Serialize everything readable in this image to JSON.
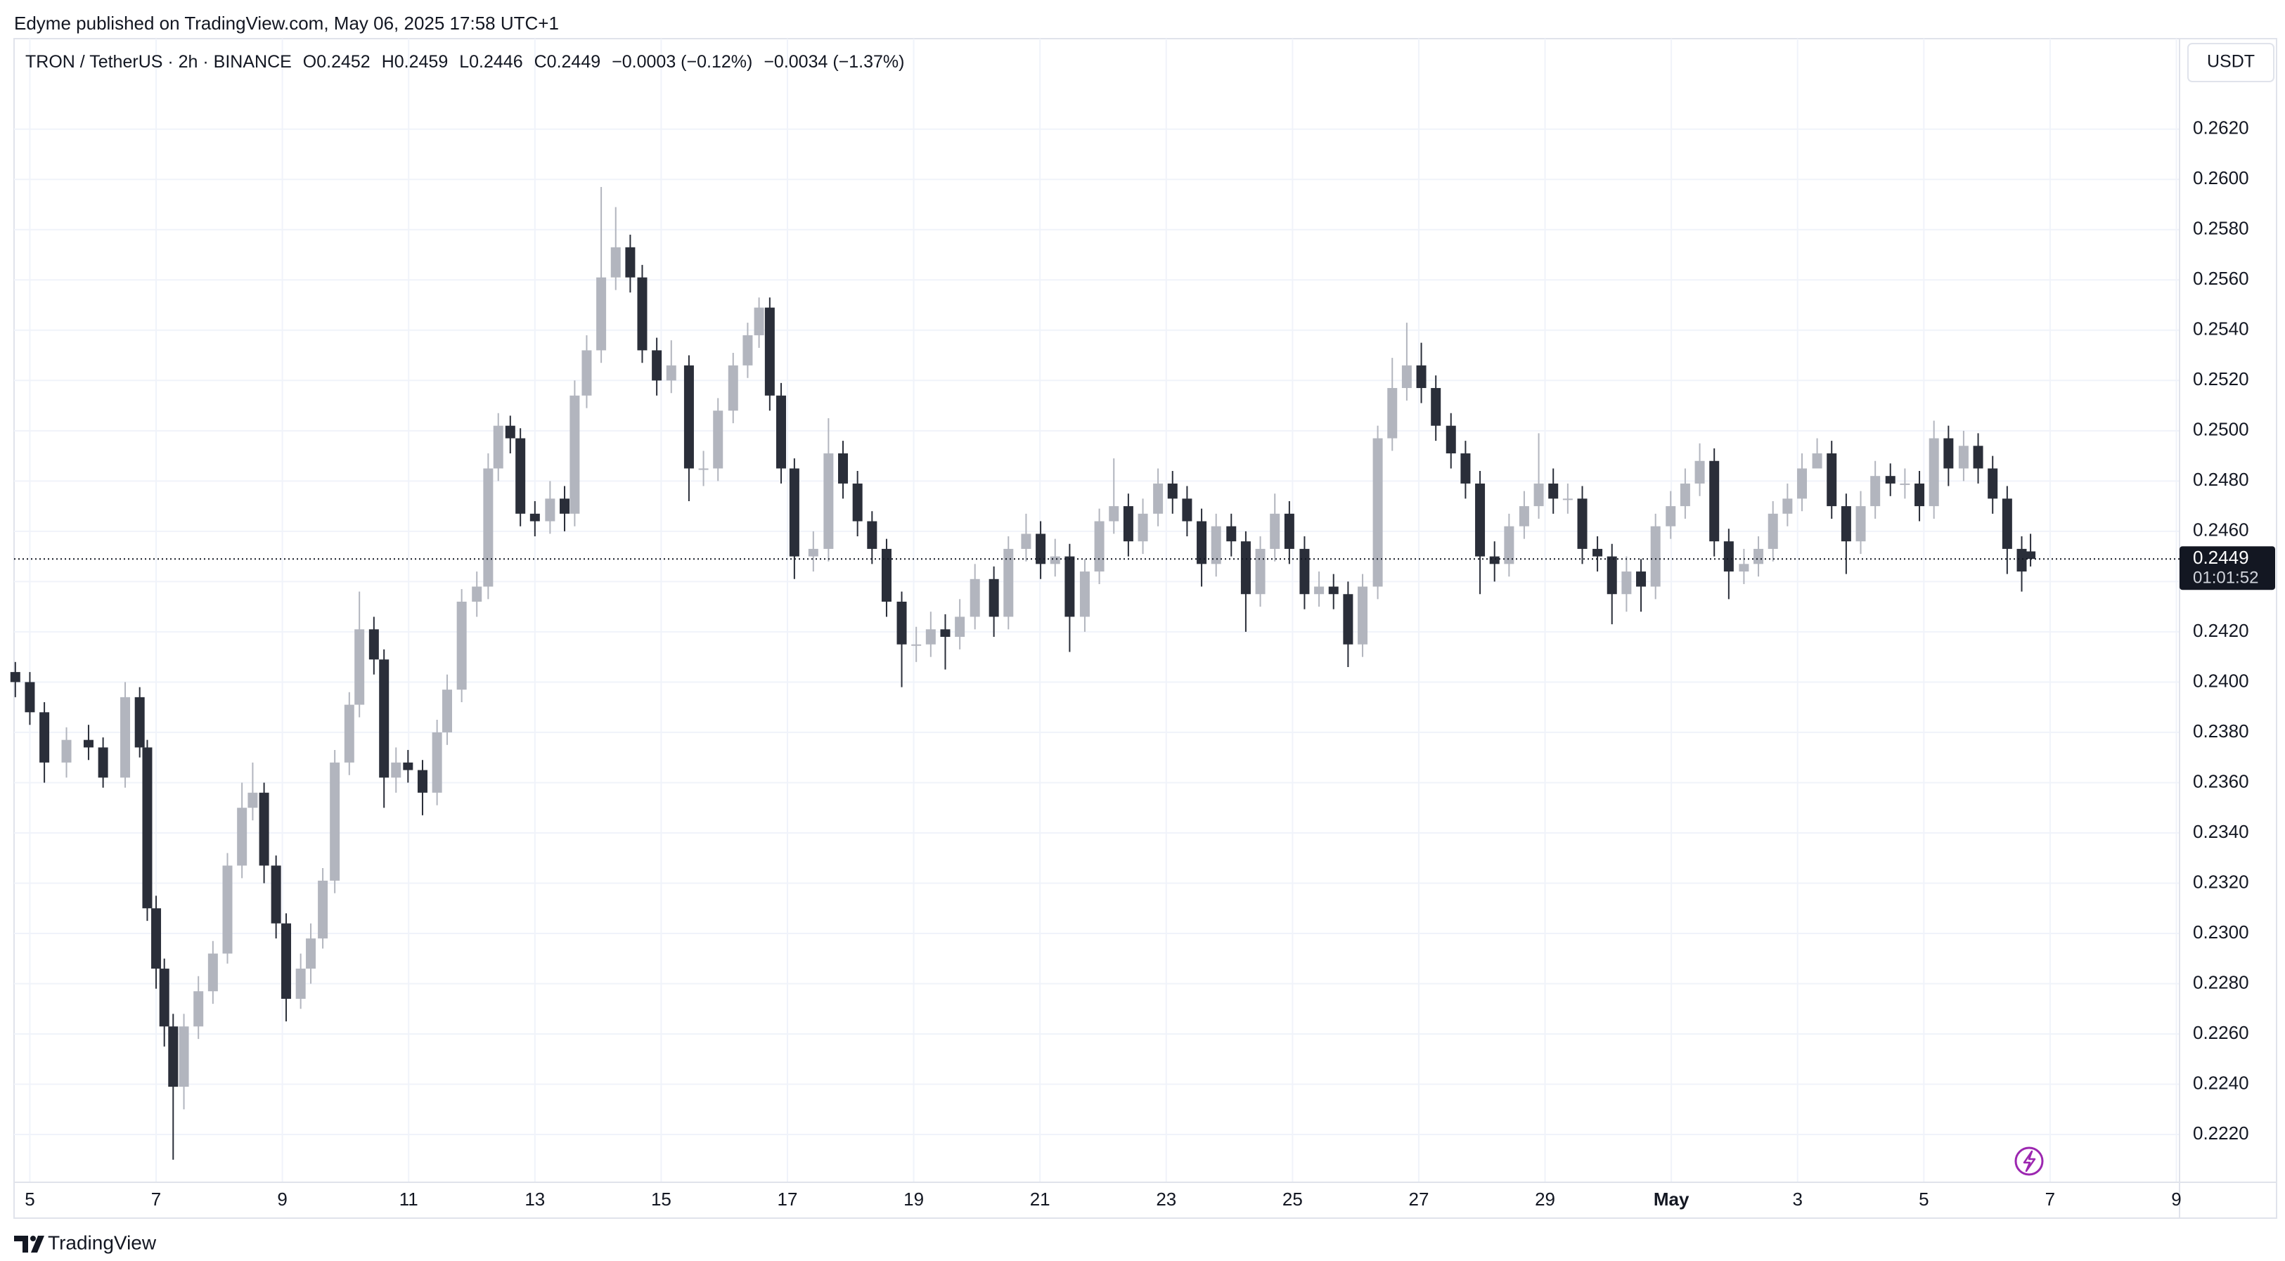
{
  "attribution": "Edyme published on TradingView.com, May 06, 2025 17:58 UTC+1",
  "footer": "TradingView",
  "chart_data": {
    "type": "candlestick",
    "symbol": "TRON / TetherUS · 2h · BINANCE",
    "ohlc_labels": [
      "O0.2452",
      "H0.2459",
      "L0.2446",
      "C0.2449"
    ],
    "change": "−0.0003 (−0.12%)",
    "change_2": "−0.0034 (−1.37%)",
    "currency": "USDT",
    "last_price": 0.2449,
    "countdown": "01:01:52",
    "up_color": "#b2b5be",
    "down_color": "#2a2e39",
    "grid": true,
    "xlim": [
      -0.25,
      34.05
    ],
    "xticks": [
      {
        "value": 0,
        "label": "5"
      },
      {
        "value": 2,
        "label": "7"
      },
      {
        "value": 4,
        "label": "9"
      },
      {
        "value": 6,
        "label": "11"
      },
      {
        "value": 8,
        "label": "13"
      },
      {
        "value": 10,
        "label": "15"
      },
      {
        "value": 12,
        "label": "17"
      },
      {
        "value": 14,
        "label": "19"
      },
      {
        "value": 16,
        "label": "21"
      },
      {
        "value": 18,
        "label": "23"
      },
      {
        "value": 20,
        "label": "25"
      },
      {
        "value": 22,
        "label": "27"
      },
      {
        "value": 24,
        "label": "29"
      },
      {
        "value": 26,
        "label": "May"
      },
      {
        "value": 28,
        "label": "3"
      },
      {
        "value": 30,
        "label": "5"
      },
      {
        "value": 32,
        "label": "7"
      },
      {
        "value": 34,
        "label": "9"
      }
    ],
    "ylim": [
      0.2201,
      0.2656
    ],
    "yticks": [
      {
        "value": 0.222,
        "label": "0.2220"
      },
      {
        "value": 0.224,
        "label": "0.2240"
      },
      {
        "value": 0.226,
        "label": "0.2260"
      },
      {
        "value": 0.228,
        "label": "0.2280"
      },
      {
        "value": 0.23,
        "label": "0.2300"
      },
      {
        "value": 0.232,
        "label": "0.2320"
      },
      {
        "value": 0.234,
        "label": "0.2340"
      },
      {
        "value": 0.236,
        "label": "0.2360"
      },
      {
        "value": 0.238,
        "label": "0.2380"
      },
      {
        "value": 0.24,
        "label": "0.2400"
      },
      {
        "value": 0.242,
        "label": "0.2420"
      },
      {
        "value": 0.244,
        "label": "0.2440"
      },
      {
        "value": 0.246,
        "label": "0.2460"
      },
      {
        "value": 0.248,
        "label": "0.2480"
      },
      {
        "value": 0.25,
        "label": "0.2500"
      },
      {
        "value": 0.252,
        "label": "0.2520"
      },
      {
        "value": 0.254,
        "label": "0.2540"
      },
      {
        "value": 0.256,
        "label": "0.2560"
      },
      {
        "value": 0.258,
        "label": "0.2580"
      },
      {
        "value": 0.26,
        "label": "0.2600"
      },
      {
        "value": 0.262,
        "label": "0.2620"
      }
    ],
    "x": [
      -0.23,
      0,
      0.23,
      0.58,
      0.93,
      1.16,
      1.51,
      1.74,
      1.86,
      2.0,
      2.13,
      2.27,
      2.44,
      2.67,
      2.9,
      3.13,
      3.36,
      3.53,
      3.71,
      3.9,
      4.06,
      4.29,
      4.45,
      4.64,
      4.83,
      5.06,
      5.22,
      5.45,
      5.61,
      5.8,
      5.99,
      6.22,
      6.45,
      6.61,
      6.84,
      7.08,
      7.26,
      7.42,
      7.61,
      7.77,
      8.0,
      8.24,
      8.47,
      8.63,
      8.82,
      9.05,
      9.28,
      9.51,
      9.7,
      9.93,
      10.16,
      10.44,
      10.67,
      10.9,
      11.14,
      11.37,
      11.55,
      11.72,
      11.9,
      12.11,
      12.41,
      12.65,
      12.88,
      13.11,
      13.34,
      13.57,
      13.81,
      14.04,
      14.27,
      14.5,
      14.73,
      14.97,
      15.27,
      15.5,
      15.78,
      16.01,
      16.24,
      16.47,
      16.71,
      16.94,
      17.17,
      17.4,
      17.63,
      17.87,
      18.1,
      18.33,
      18.56,
      18.79,
      19.03,
      19.26,
      19.49,
      19.72,
      19.95,
      20.19,
      20.42,
      20.65,
      20.88,
      21.11,
      21.35,
      21.58,
      21.81,
      22.04,
      22.27,
      22.51,
      22.74,
      22.97,
      23.2,
      23.43,
      23.67,
      23.9,
      24.13,
      24.36,
      24.59,
      24.83,
      25.06,
      25.29,
      25.52,
      25.75,
      25.99,
      26.22,
      26.45,
      26.68,
      26.91,
      27.15,
      27.38,
      27.61,
      27.84,
      28.07,
      28.31,
      28.54,
      28.77,
      29.0,
      29.23,
      29.47,
      29.7,
      29.93,
      30.16,
      30.39,
      30.63,
      30.86,
      31.09,
      31.32,
      31.55,
      31.69
    ],
    "open": [
      0.2404,
      0.24,
      0.2388,
      0.2368,
      0.2377,
      0.2374,
      0.2362,
      0.2394,
      0.2374,
      0.231,
      0.2286,
      0.2263,
      0.2239,
      0.2263,
      0.2277,
      0.2292,
      0.2327,
      0.235,
      0.2356,
      0.2327,
      0.2304,
      0.2274,
      0.2286,
      0.2298,
      0.2321,
      0.2368,
      0.2391,
      0.2421,
      0.2409,
      0.2362,
      0.2368,
      0.2365,
      0.2356,
      0.238,
      0.2397,
      0.2432,
      0.2438,
      0.2485,
      0.2502,
      0.2497,
      0.2467,
      0.2464,
      0.2473,
      0.2467,
      0.2514,
      0.2532,
      0.2561,
      0.2573,
      0.2561,
      0.2532,
      0.252,
      0.2526,
      0.2485,
      0.2485,
      0.2508,
      0.2526,
      0.2538,
      0.2549,
      0.2514,
      0.2485,
      0.245,
      0.2453,
      0.2491,
      0.2479,
      0.2464,
      0.2453,
      0.2432,
      0.2415,
      0.2415,
      0.2421,
      0.2418,
      0.2426,
      0.2441,
      0.2426,
      0.2453,
      0.2459,
      0.2447,
      0.245,
      0.2426,
      0.2444,
      0.2464,
      0.247,
      0.2456,
      0.2467,
      0.2479,
      0.2473,
      0.2464,
      0.2447,
      0.2462,
      0.2456,
      0.2435,
      0.2453,
      0.2467,
      0.2453,
      0.2435,
      0.2438,
      0.2435,
      0.2415,
      0.2438,
      0.2497,
      0.2517,
      0.2526,
      0.2517,
      0.2502,
      0.2491,
      0.2479,
      0.245,
      0.2447,
      0.2462,
      0.247,
      0.2479,
      0.2473,
      0.2473,
      0.2453,
      0.245,
      0.2435,
      0.2444,
      0.2438,
      0.2462,
      0.247,
      0.2479,
      0.2488,
      0.2456,
      0.2444,
      0.2447,
      0.2453,
      0.2467,
      0.2473,
      0.2485,
      0.2491,
      0.247,
      0.2456,
      0.247,
      0.2482,
      0.2479,
      0.2479,
      0.247,
      0.2497,
      0.2485,
      0.2494,
      0.2485,
      0.2473,
      0.2453,
      0.2452
    ],
    "high": [
      0.2408,
      0.2404,
      0.2392,
      0.2382,
      0.2383,
      0.2378,
      0.24,
      0.2398,
      0.2377,
      0.2315,
      0.229,
      0.2268,
      0.2268,
      0.2283,
      0.2297,
      0.2332,
      0.236,
      0.2368,
      0.236,
      0.2331,
      0.2308,
      0.2292,
      0.2304,
      0.2326,
      0.2373,
      0.2396,
      0.2436,
      0.2426,
      0.2413,
      0.2374,
      0.2373,
      0.2369,
      0.2385,
      0.2403,
      0.2437,
      0.2444,
      0.2491,
      0.2507,
      0.2506,
      0.2501,
      0.2472,
      0.248,
      0.2478,
      0.252,
      0.2538,
      0.2597,
      0.2589,
      0.2578,
      0.2566,
      0.2537,
      0.2536,
      0.253,
      0.2492,
      0.2513,
      0.2531,
      0.2543,
      0.2553,
      0.2553,
      0.2519,
      0.2489,
      0.246,
      0.2505,
      0.2496,
      0.2484,
      0.2468,
      0.2457,
      0.2436,
      0.2422,
      0.2428,
      0.2427,
      0.2433,
      0.2447,
      0.2446,
      0.2458,
      0.2467,
      0.2464,
      0.2457,
      0.2455,
      0.2449,
      0.2469,
      0.2489,
      0.2475,
      0.2473,
      0.2485,
      0.2484,
      0.2478,
      0.2469,
      0.2467,
      0.2467,
      0.246,
      0.2458,
      0.2475,
      0.2472,
      0.2458,
      0.2444,
      0.2443,
      0.244,
      0.2443,
      0.2502,
      0.2529,
      0.2543,
      0.2535,
      0.2522,
      0.2507,
      0.2496,
      0.2484,
      0.2456,
      0.2467,
      0.2476,
      0.2499,
      0.2485,
      0.2479,
      0.2478,
      0.2458,
      0.2455,
      0.245,
      0.2449,
      0.2467,
      0.2476,
      0.2485,
      0.2495,
      0.2493,
      0.2461,
      0.2453,
      0.2458,
      0.2472,
      0.2479,
      0.2491,
      0.2497,
      0.2496,
      0.2475,
      0.2476,
      0.2488,
      0.2487,
      0.2485,
      0.2484,
      0.2504,
      0.2502,
      0.25,
      0.2499,
      0.249,
      0.2478,
      0.2458,
      0.2459
    ],
    "low": [
      0.2394,
      0.2383,
      0.236,
      0.2362,
      0.2369,
      0.2358,
      0.2358,
      0.237,
      0.2305,
      0.2278,
      0.2255,
      0.221,
      0.223,
      0.2258,
      0.2272,
      0.2288,
      0.2322,
      0.2345,
      0.232,
      0.2298,
      0.2265,
      0.227,
      0.228,
      0.2294,
      0.2316,
      0.2363,
      0.2386,
      0.2403,
      0.235,
      0.2356,
      0.236,
      0.2347,
      0.2351,
      0.2375,
      0.2392,
      0.2426,
      0.2433,
      0.248,
      0.2491,
      0.2462,
      0.2458,
      0.2459,
      0.246,
      0.2462,
      0.2509,
      0.2527,
      0.2556,
      0.2555,
      0.2527,
      0.2514,
      0.2515,
      0.2472,
      0.2478,
      0.248,
      0.2503,
      0.2521,
      0.2533,
      0.2508,
      0.2479,
      0.2441,
      0.2444,
      0.2448,
      0.2473,
      0.2458,
      0.2447,
      0.2426,
      0.2398,
      0.2408,
      0.241,
      0.2405,
      0.2413,
      0.2421,
      0.2418,
      0.2421,
      0.2448,
      0.2441,
      0.2442,
      0.2412,
      0.242,
      0.2439,
      0.2459,
      0.245,
      0.2451,
      0.2462,
      0.2467,
      0.2458,
      0.2438,
      0.2442,
      0.245,
      0.242,
      0.243,
      0.2448,
      0.2447,
      0.2429,
      0.243,
      0.2429,
      0.2406,
      0.241,
      0.2433,
      0.2492,
      0.2512,
      0.2511,
      0.2496,
      0.2485,
      0.2473,
      0.2435,
      0.244,
      0.2442,
      0.2457,
      0.2465,
      0.2467,
      0.2467,
      0.2447,
      0.2444,
      0.2423,
      0.2428,
      0.2428,
      0.2433,
      0.2457,
      0.2465,
      0.2474,
      0.245,
      0.2433,
      0.2439,
      0.2442,
      0.2448,
      0.2462,
      0.2468,
      0.2486,
      0.2465,
      0.2443,
      0.2451,
      0.2465,
      0.2474,
      0.2473,
      0.2464,
      0.2465,
      0.2478,
      0.248,
      0.2479,
      0.2467,
      0.2443,
      0.2436,
      0.2446
    ],
    "close": [
      0.24,
      0.2388,
      0.2368,
      0.2377,
      0.2374,
      0.2362,
      0.2394,
      0.2374,
      0.231,
      0.2286,
      0.2263,
      0.2239,
      0.2263,
      0.2277,
      0.2292,
      0.2327,
      0.235,
      0.2356,
      0.2327,
      0.2304,
      0.2274,
      0.2286,
      0.2298,
      0.2321,
      0.2368,
      0.2391,
      0.2421,
      0.2409,
      0.2362,
      0.2368,
      0.2365,
      0.2356,
      0.238,
      0.2397,
      0.2432,
      0.2438,
      0.2485,
      0.2502,
      0.2497,
      0.2467,
      0.2464,
      0.2473,
      0.2467,
      0.2514,
      0.2532,
      0.2561,
      0.2573,
      0.2561,
      0.2532,
      0.252,
      0.2526,
      0.2485,
      0.2485,
      0.2508,
      0.2526,
      0.2538,
      0.2549,
      0.2514,
      0.2485,
      0.245,
      0.2453,
      0.2491,
      0.2479,
      0.2464,
      0.2453,
      0.2432,
      0.2415,
      0.2415,
      0.2421,
      0.2418,
      0.2426,
      0.2441,
      0.2426,
      0.2453,
      0.2459,
      0.2447,
      0.245,
      0.2426,
      0.2444,
      0.2464,
      0.247,
      0.2456,
      0.2467,
      0.2479,
      0.2473,
      0.2464,
      0.2447,
      0.2462,
      0.2456,
      0.2435,
      0.2453,
      0.2467,
      0.2453,
      0.2435,
      0.2438,
      0.2435,
      0.2415,
      0.2438,
      0.2497,
      0.2517,
      0.2526,
      0.2517,
      0.2502,
      0.2491,
      0.2479,
      0.245,
      0.2447,
      0.2462,
      0.247,
      0.2479,
      0.2473,
      0.2473,
      0.2453,
      0.245,
      0.2435,
      0.2444,
      0.2438,
      0.2462,
      0.247,
      0.2479,
      0.2488,
      0.2456,
      0.2444,
      0.2447,
      0.2453,
      0.2467,
      0.2473,
      0.2485,
      0.2491,
      0.247,
      0.2456,
      0.247,
      0.2482,
      0.2479,
      0.2479,
      0.247,
      0.2497,
      0.2485,
      0.2494,
      0.2485,
      0.2473,
      0.2453,
      0.2444,
      0.2449
    ]
  }
}
